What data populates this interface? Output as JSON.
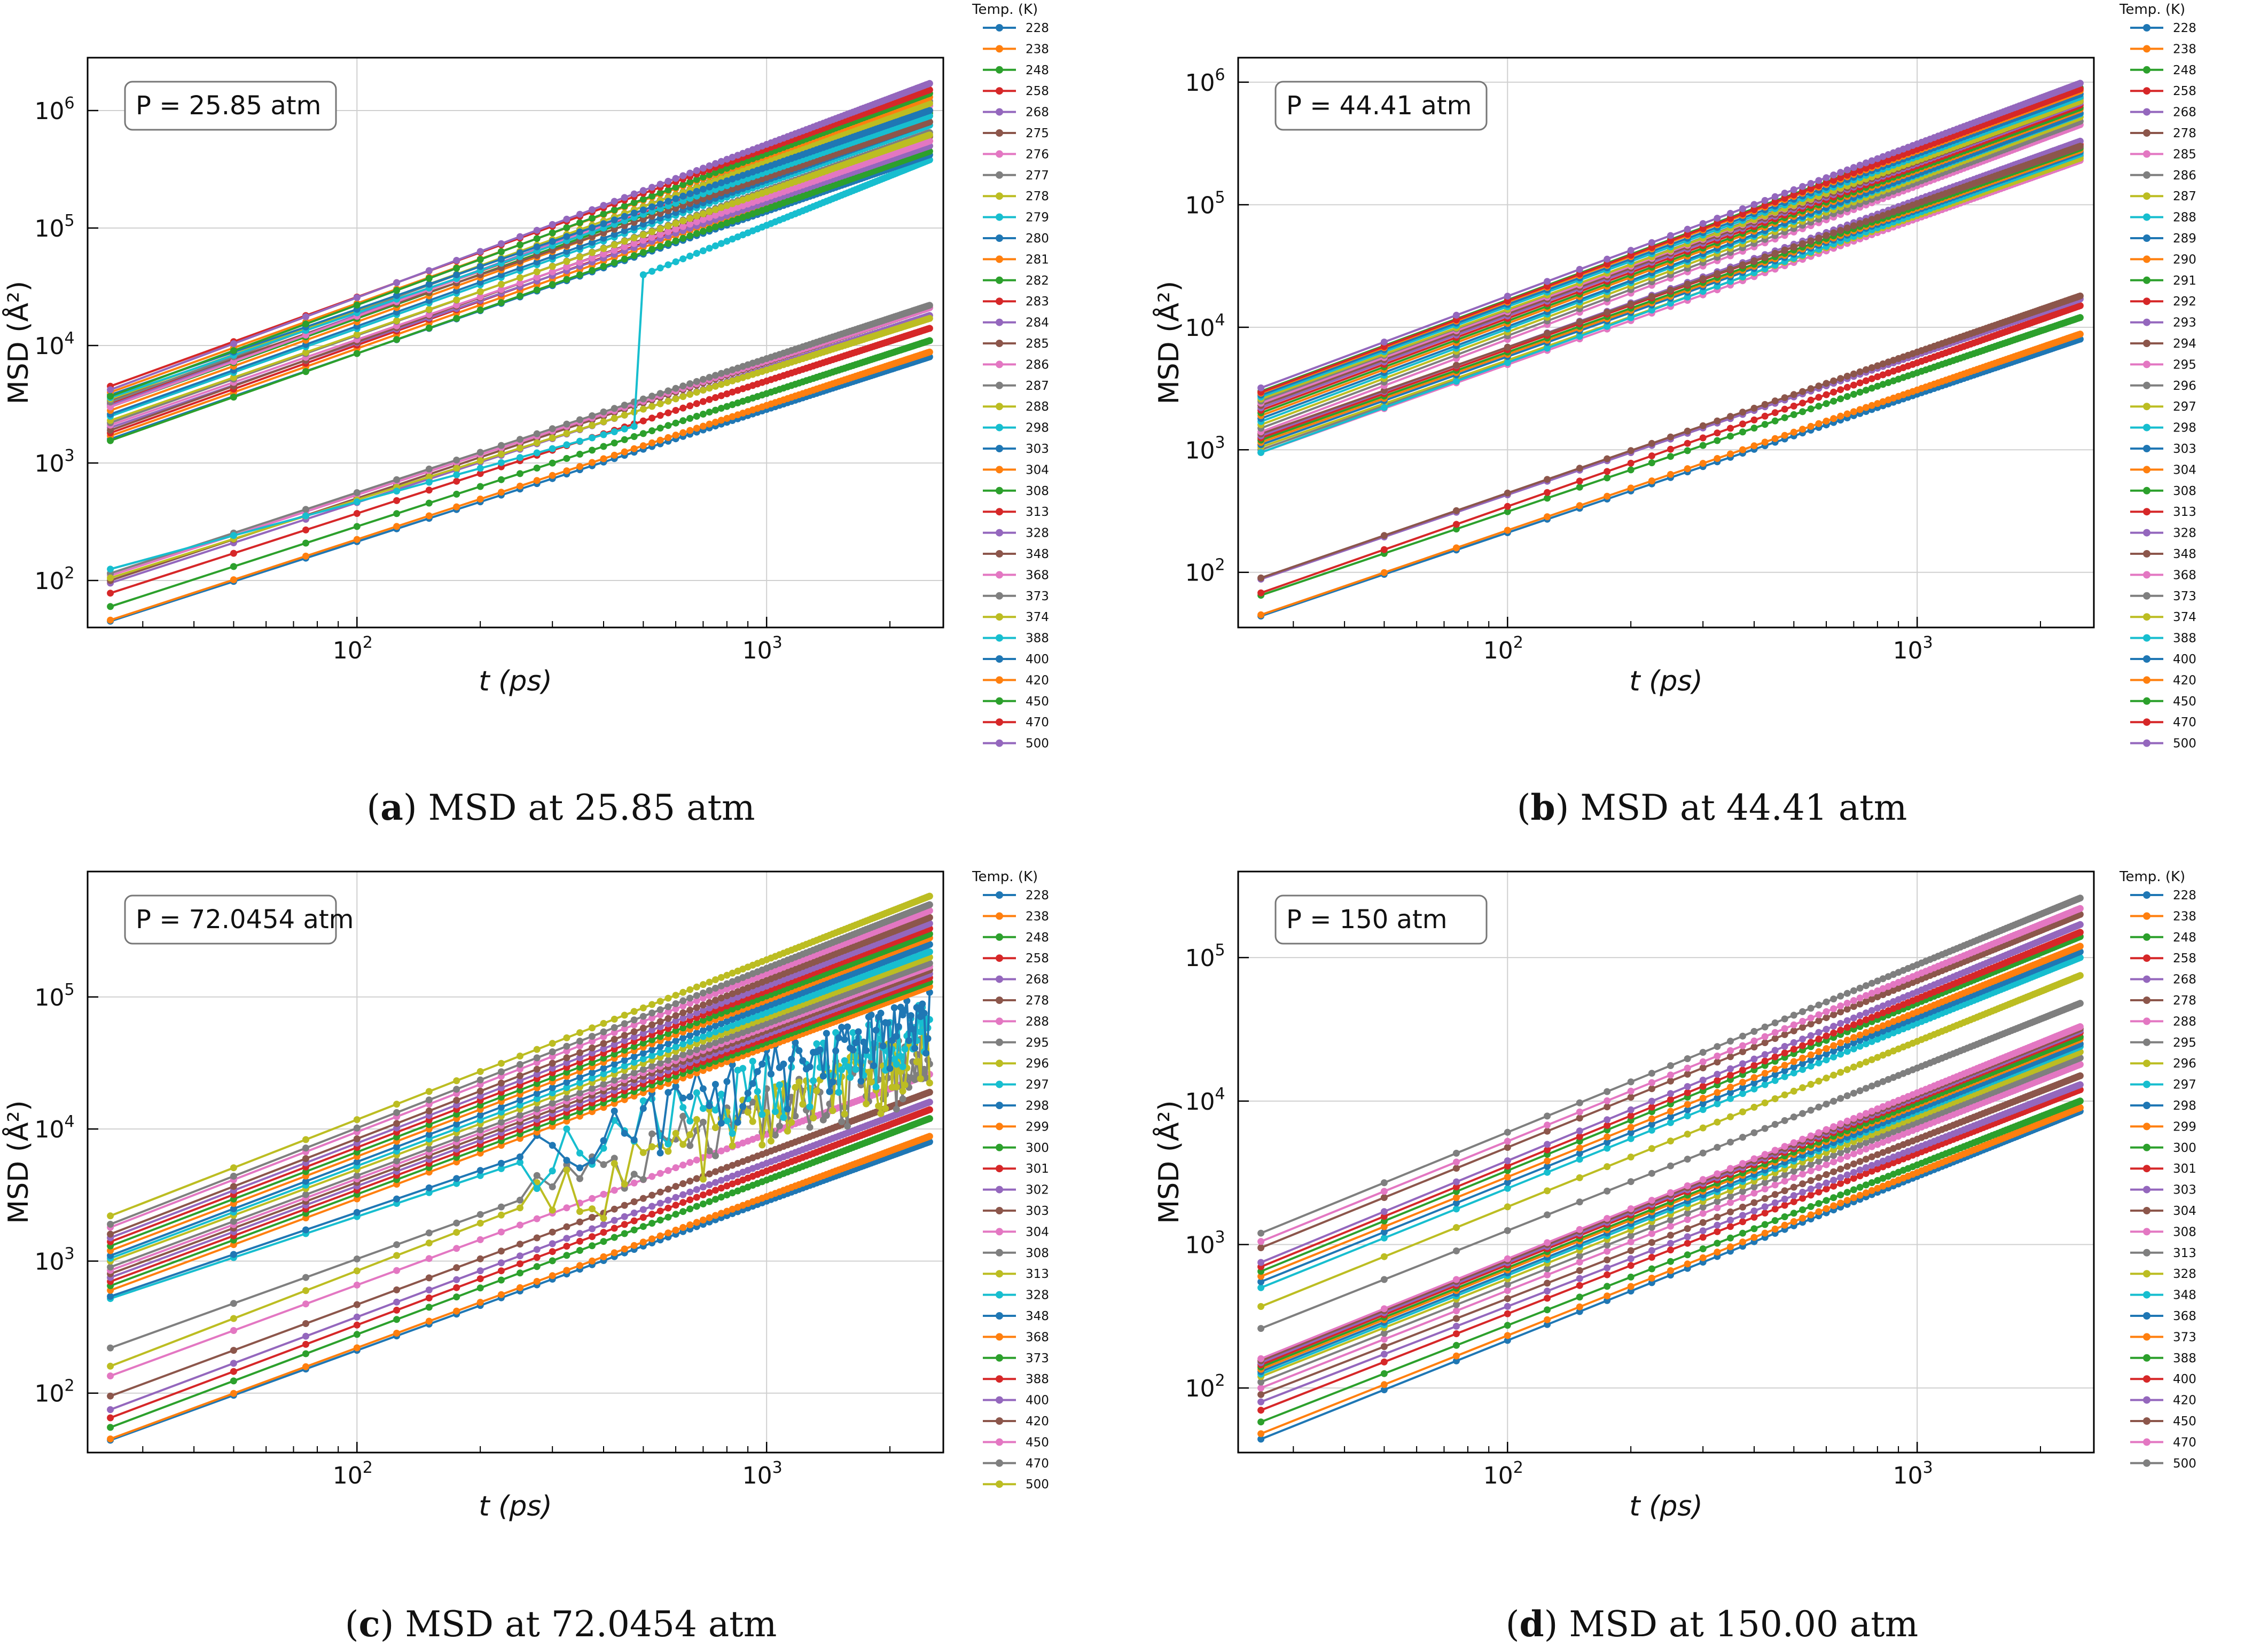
{
  "chart_data": [
    {
      "id": "a",
      "type": "line",
      "caption_label": "a",
      "caption_text": "MSD at 25.85 atm",
      "annotation": "P = 25.85  atm",
      "xlabel": "t (ps)",
      "ylabel": "MSD (Å²)",
      "xscale": "log",
      "yscale": "log",
      "xlim": [
        22,
        2700
      ],
      "ylim_exp": [
        1.6,
        6.45
      ],
      "x_ticks": [
        {
          "exp": 2,
          "label": "10",
          "sup": "2"
        },
        {
          "exp": 3,
          "label": "10",
          "sup": "3"
        }
      ],
      "y_ticks": [
        {
          "exp": 2,
          "label": "10",
          "sup": "2"
        },
        {
          "exp": 3,
          "label": "10",
          "sup": "3"
        },
        {
          "exp": 4,
          "label": "10",
          "sup": "4"
        },
        {
          "exp": 5,
          "label": "10",
          "sup": "5"
        },
        {
          "exp": 6,
          "label": "10",
          "sup": "6"
        }
      ],
      "legend_title": "Temp. (K)",
      "legend_position": "outside-right",
      "x_range_ps": [
        25,
        2500
      ],
      "series": [
        {
          "name": "228",
          "msd_start": 45,
          "msd_end": 8000
        },
        {
          "name": "238",
          "msd_start": 46,
          "msd_end": 8800
        },
        {
          "name": "248",
          "msd_start": 60,
          "msd_end": 11000
        },
        {
          "name": "258",
          "msd_start": 78,
          "msd_end": 14000
        },
        {
          "name": "268",
          "msd_start": 95,
          "msd_end": 18000
        },
        {
          "name": "275",
          "msd_start": 100,
          "msd_end": 21000
        },
        {
          "name": "276",
          "msd_start": 110,
          "msd_end": 21000
        },
        {
          "name": "277",
          "msd_start": 115,
          "msd_end": 22000
        },
        {
          "name": "278",
          "msd_start": 105,
          "msd_end": 17000
        },
        {
          "name": "279",
          "msd_start": 125,
          "msd_end": 380000,
          "jump_at_ps": 500,
          "jump_to": 40000
        },
        {
          "name": "280",
          "msd_start": 1600,
          "msd_end": 420000
        },
        {
          "name": "281",
          "msd_start": 1700,
          "msd_end": 500000
        },
        {
          "name": "282",
          "msd_start": 1550,
          "msd_end": 450000
        },
        {
          "name": "283",
          "msd_start": 1800,
          "msd_end": 550000
        },
        {
          "name": "284",
          "msd_start": 2000,
          "msd_end": 500000
        },
        {
          "name": "285",
          "msd_start": 1900,
          "msd_end": 600000
        },
        {
          "name": "286",
          "msd_start": 2100,
          "msd_end": 550000
        },
        {
          "name": "287",
          "msd_start": 2200,
          "msd_end": 650000
        },
        {
          "name": "288",
          "msd_start": 2300,
          "msd_end": 620000
        },
        {
          "name": "298",
          "msd_start": 2500,
          "msd_end": 750000
        },
        {
          "name": "303",
          "msd_start": 2600,
          "msd_end": 800000
        },
        {
          "name": "304",
          "msd_start": 2800,
          "msd_end": 900000
        },
        {
          "name": "308",
          "msd_start": 3000,
          "msd_end": 950000
        },
        {
          "name": "313",
          "msd_start": 3200,
          "msd_end": 1000000
        },
        {
          "name": "328",
          "msd_start": 3100,
          "msd_end": 1100000
        },
        {
          "name": "348",
          "msd_start": 3400,
          "msd_end": 800000
        },
        {
          "name": "368",
          "msd_start": 3000,
          "msd_end": 1100000
        },
        {
          "name": "373",
          "msd_start": 3300,
          "msd_end": 1200000
        },
        {
          "name": "374",
          "msd_start": 3500,
          "msd_end": 1150000
        },
        {
          "name": "388",
          "msd_start": 3600,
          "msd_end": 900000
        },
        {
          "name": "400",
          "msd_start": 3800,
          "msd_end": 1000000
        },
        {
          "name": "420",
          "msd_start": 4000,
          "msd_end": 1300000
        },
        {
          "name": "450",
          "msd_start": 3700,
          "msd_end": 1400000
        },
        {
          "name": "470",
          "msd_start": 4500,
          "msd_end": 1500000
        },
        {
          "name": "500",
          "msd_start": 4200,
          "msd_end": 1700000
        }
      ]
    },
    {
      "id": "b",
      "type": "line",
      "caption_label": "b",
      "caption_text": "MSD at 44.41 atm",
      "annotation": "P = 44.41  atm",
      "xlabel": "t (ps)",
      "ylabel": "MSD (Å²)",
      "xscale": "log",
      "yscale": "log",
      "xlim": [
        22,
        2700
      ],
      "ylim_exp": [
        1.55,
        6.2
      ],
      "x_ticks": [
        {
          "exp": 2,
          "label": "10",
          "sup": "2"
        },
        {
          "exp": 3,
          "label": "10",
          "sup": "3"
        }
      ],
      "y_ticks": [
        {
          "exp": 2,
          "label": "10",
          "sup": "2"
        },
        {
          "exp": 3,
          "label": "10",
          "sup": "3"
        },
        {
          "exp": 4,
          "label": "10",
          "sup": "4"
        },
        {
          "exp": 5,
          "label": "10",
          "sup": "5"
        },
        {
          "exp": 6,
          "label": "10",
          "sup": "6"
        }
      ],
      "legend_title": "Temp. (K)",
      "legend_position": "outside-right",
      "x_range_ps": [
        25,
        2500
      ],
      "series": [
        {
          "name": "228",
          "msd_start": 44,
          "msd_end": 8000
        },
        {
          "name": "238",
          "msd_start": 45,
          "msd_end": 8800
        },
        {
          "name": "248",
          "msd_start": 65,
          "msd_end": 12000
        },
        {
          "name": "258",
          "msd_start": 68,
          "msd_end": 15000
        },
        {
          "name": "268",
          "msd_start": 88,
          "msd_end": 17000
        },
        {
          "name": "278",
          "msd_start": 90,
          "msd_end": 18000
        },
        {
          "name": "285",
          "msd_start": 950,
          "msd_end": 230000
        },
        {
          "name": "286",
          "msd_start": 1000,
          "msd_end": 250000
        },
        {
          "name": "287",
          "msd_start": 1050,
          "msd_end": 240000
        },
        {
          "name": "288",
          "msd_start": 950,
          "msd_end": 260000
        },
        {
          "name": "289",
          "msd_start": 1100,
          "msd_end": 270000
        },
        {
          "name": "290",
          "msd_start": 1150,
          "msd_end": 280000
        },
        {
          "name": "291",
          "msd_start": 1200,
          "msd_end": 290000
        },
        {
          "name": "292",
          "msd_start": 1250,
          "msd_end": 310000
        },
        {
          "name": "293",
          "msd_start": 1300,
          "msd_end": 330000
        },
        {
          "name": "294",
          "msd_start": 1350,
          "msd_end": 300000
        },
        {
          "name": "295",
          "msd_start": 1400,
          "msd_end": 450000
        },
        {
          "name": "296",
          "msd_start": 1500,
          "msd_end": 480000
        },
        {
          "name": "297",
          "msd_start": 1600,
          "msd_end": 520000
        },
        {
          "name": "298",
          "msd_start": 1700,
          "msd_end": 550000
        },
        {
          "name": "303",
          "msd_start": 1800,
          "msd_end": 560000
        },
        {
          "name": "304",
          "msd_start": 1900,
          "msd_end": 600000
        },
        {
          "name": "308",
          "msd_start": 2000,
          "msd_end": 620000
        },
        {
          "name": "313",
          "msd_start": 2100,
          "msd_end": 650000
        },
        {
          "name": "328",
          "msd_start": 2200,
          "msd_end": 680000
        },
        {
          "name": "348",
          "msd_start": 2300,
          "msd_end": 700000
        },
        {
          "name": "368",
          "msd_start": 2400,
          "msd_end": 720000
        },
        {
          "name": "373",
          "msd_start": 2500,
          "msd_end": 740000
        },
        {
          "name": "374",
          "msd_start": 2600,
          "msd_end": 700000
        },
        {
          "name": "388",
          "msd_start": 2700,
          "msd_end": 760000
        },
        {
          "name": "400",
          "msd_start": 2800,
          "msd_end": 800000
        },
        {
          "name": "420",
          "msd_start": 2900,
          "msd_end": 850000
        },
        {
          "name": "450",
          "msd_start": 3000,
          "msd_end": 900000
        },
        {
          "name": "470",
          "msd_start": 2950,
          "msd_end": 880000
        },
        {
          "name": "500",
          "msd_start": 3200,
          "msd_end": 980000
        }
      ]
    },
    {
      "id": "c",
      "type": "line",
      "caption_label": "c",
      "caption_text": "MSD at 72.0454 atm",
      "annotation": "P = 72.0454  atm",
      "xlabel": "t (ps)",
      "ylabel": "MSD (Å²)",
      "xscale": "log",
      "yscale": "log",
      "xlim": [
        22,
        2700
      ],
      "ylim_exp": [
        1.55,
        5.95
      ],
      "x_ticks": [
        {
          "exp": 2,
          "label": "10",
          "sup": "2"
        },
        {
          "exp": 3,
          "label": "10",
          "sup": "3"
        }
      ],
      "y_ticks": [
        {
          "exp": 2,
          "label": "10",
          "sup": "2"
        },
        {
          "exp": 3,
          "label": "10",
          "sup": "3"
        },
        {
          "exp": 4,
          "label": "10",
          "sup": "4"
        },
        {
          "exp": 5,
          "label": "10",
          "sup": "5"
        }
      ],
      "legend_title": "Temp. (K)",
      "legend_position": "outside-right",
      "x_range_ps": [
        25,
        2500
      ],
      "series": [
        {
          "name": "228",
          "msd_start": 44,
          "msd_end": 8000
        },
        {
          "name": "238",
          "msd_start": 45,
          "msd_end": 8800
        },
        {
          "name": "248",
          "msd_start": 55,
          "msd_end": 12000
        },
        {
          "name": "258",
          "msd_start": 65,
          "msd_end": 14000
        },
        {
          "name": "268",
          "msd_start": 75,
          "msd_end": 16000
        },
        {
          "name": "278",
          "msd_start": 95,
          "msd_end": 19000
        },
        {
          "name": "288",
          "msd_start": 135,
          "msd_end": 26000
        },
        {
          "name": "295",
          "msd_start": 220,
          "msd_end": 38000,
          "noisy": true
        },
        {
          "name": "296",
          "msd_start": 160,
          "msd_end": 40000,
          "noisy": true
        },
        {
          "name": "297",
          "msd_start": 520,
          "msd_end": 60000,
          "noisy": true
        },
        {
          "name": "298",
          "msd_start": 540,
          "msd_end": 70000,
          "noisy": true
        },
        {
          "name": "299",
          "msd_start": 600,
          "msd_end": 120000
        },
        {
          "name": "300",
          "msd_start": 650,
          "msd_end": 130000
        },
        {
          "name": "301",
          "msd_start": 700,
          "msd_end": 140000
        },
        {
          "name": "302",
          "msd_start": 750,
          "msd_end": 150000
        },
        {
          "name": "303",
          "msd_start": 800,
          "msd_end": 160000
        },
        {
          "name": "304",
          "msd_start": 850,
          "msd_end": 170000
        },
        {
          "name": "308",
          "msd_start": 900,
          "msd_end": 180000
        },
        {
          "name": "313",
          "msd_start": 1000,
          "msd_end": 200000
        },
        {
          "name": "328",
          "msd_start": 1050,
          "msd_end": 220000
        },
        {
          "name": "348",
          "msd_start": 1100,
          "msd_end": 250000
        },
        {
          "name": "368",
          "msd_start": 1200,
          "msd_end": 280000
        },
        {
          "name": "373",
          "msd_start": 1300,
          "msd_end": 300000
        },
        {
          "name": "388",
          "msd_start": 1400,
          "msd_end": 330000
        },
        {
          "name": "400",
          "msd_start": 1500,
          "msd_end": 360000
        },
        {
          "name": "420",
          "msd_start": 1600,
          "msd_end": 400000
        },
        {
          "name": "450",
          "msd_start": 1800,
          "msd_end": 450000
        },
        {
          "name": "470",
          "msd_start": 1900,
          "msd_end": 500000
        },
        {
          "name": "500",
          "msd_start": 2200,
          "msd_end": 580000
        }
      ]
    },
    {
      "id": "d",
      "type": "line",
      "caption_label": "d",
      "caption_text": "MSD at 150.00 atm",
      "annotation": "P = 150  atm",
      "xlabel": "t (ps)",
      "ylabel": "MSD (Å²)",
      "xscale": "log",
      "yscale": "log",
      "xlim": [
        22,
        2700
      ],
      "ylim_exp": [
        1.55,
        5.6
      ],
      "x_ticks": [
        {
          "exp": 2,
          "label": "10",
          "sup": "2"
        },
        {
          "exp": 3,
          "label": "10",
          "sup": "3"
        }
      ],
      "y_ticks": [
        {
          "exp": 2,
          "label": "10",
          "sup": "2"
        },
        {
          "exp": 3,
          "label": "10",
          "sup": "3"
        },
        {
          "exp": 4,
          "label": "10",
          "sup": "4"
        },
        {
          "exp": 5,
          "label": "10",
          "sup": "5"
        }
      ],
      "legend_title": "Temp. (K)",
      "legend_position": "outside-right",
      "x_range_ps": [
        25,
        2500
      ],
      "series": [
        {
          "name": "228",
          "msd_start": 44,
          "msd_end": 8500
        },
        {
          "name": "238",
          "msd_start": 48,
          "msd_end": 9000
        },
        {
          "name": "248",
          "msd_start": 58,
          "msd_end": 10000
        },
        {
          "name": "258",
          "msd_start": 70,
          "msd_end": 12000
        },
        {
          "name": "268",
          "msd_start": 80,
          "msd_end": 13000
        },
        {
          "name": "278",
          "msd_start": 90,
          "msd_end": 15000
        },
        {
          "name": "288",
          "msd_start": 100,
          "msd_end": 18000
        },
        {
          "name": "295",
          "msd_start": 110,
          "msd_end": 20000
        },
        {
          "name": "296",
          "msd_start": 120,
          "msd_end": 22000
        },
        {
          "name": "297",
          "msd_start": 125,
          "msd_end": 24000
        },
        {
          "name": "298",
          "msd_start": 130,
          "msd_end": 25000
        },
        {
          "name": "299",
          "msd_start": 135,
          "msd_end": 27000
        },
        {
          "name": "300",
          "msd_start": 140,
          "msd_end": 28000
        },
        {
          "name": "301",
          "msd_start": 145,
          "msd_end": 30000
        },
        {
          "name": "303",
          "msd_start": 150,
          "msd_end": 31000
        },
        {
          "name": "304",
          "msd_start": 155,
          "msd_end": 32000
        },
        {
          "name": "308",
          "msd_start": 160,
          "msd_end": 33000
        },
        {
          "name": "313",
          "msd_start": 260,
          "msd_end": 48000
        },
        {
          "name": "328",
          "msd_start": 370,
          "msd_end": 75000
        },
        {
          "name": "348",
          "msd_start": 500,
          "msd_end": 100000
        },
        {
          "name": "368",
          "msd_start": 550,
          "msd_end": 110000
        },
        {
          "name": "373",
          "msd_start": 600,
          "msd_end": 120000
        },
        {
          "name": "388",
          "msd_start": 650,
          "msd_end": 140000
        },
        {
          "name": "400",
          "msd_start": 700,
          "msd_end": 150000
        },
        {
          "name": "420",
          "msd_start": 750,
          "msd_end": 170000
        },
        {
          "name": "450",
          "msd_start": 950,
          "msd_end": 200000
        },
        {
          "name": "470",
          "msd_start": 1050,
          "msd_end": 220000
        },
        {
          "name": "500",
          "msd_start": 1200,
          "msd_end": 260000
        }
      ]
    }
  ],
  "palette": [
    "#1f77b4",
    "#ff7f0e",
    "#2ca02c",
    "#d62728",
    "#9467bd",
    "#8c564b",
    "#e377c2",
    "#7f7f7f",
    "#bcbd22",
    "#17becf"
  ]
}
